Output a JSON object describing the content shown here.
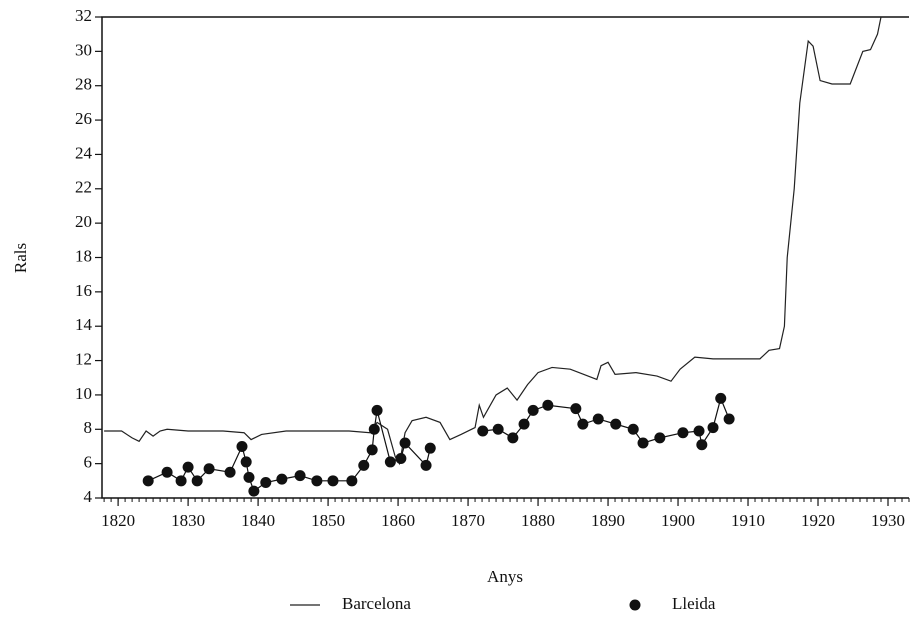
{
  "chart_data": {
    "type": "line",
    "x_label": "Anys",
    "y_label": "Rals",
    "xlim": [
      1817.7,
      1933
    ],
    "ylim": [
      4,
      32
    ],
    "xticks": [
      1820,
      1830,
      1840,
      1850,
      1860,
      1870,
      1880,
      1890,
      1900,
      1910,
      1920,
      1930
    ],
    "yticks": [
      4,
      6,
      8,
      10,
      12,
      14,
      16,
      18,
      20,
      22,
      24,
      26,
      28,
      30,
      32
    ],
    "grid": false,
    "series": [
      {
        "name": "Barcelona",
        "color": "#222222",
        "marker": "none",
        "x": [
          1818,
          1820.5,
          1822,
          1823,
          1824,
          1825,
          1826,
          1827,
          1830,
          1835,
          1838,
          1839,
          1840.5,
          1844,
          1848,
          1853,
          1856,
          1857,
          1858.5,
          1859.6,
          1860.2,
          1861,
          1862,
          1864,
          1866,
          1867.4,
          1869,
          1871,
          1871.6,
          1872.2,
          1874,
          1875.6,
          1877,
          1878.5,
          1880,
          1882,
          1884.6,
          1886.5,
          1888.4,
          1889,
          1890,
          1891,
          1894,
          1897,
          1899,
          1900.3,
          1902.4,
          1905,
          1911.7,
          1913,
          1914.5,
          1915.2,
          1915.6,
          1916.6,
          1917.4,
          1918.6,
          1919.3,
          1920.3,
          1922,
          1924.6,
          1926.4,
          1927.5,
          1928.5,
          1929
        ],
        "values": [
          7.9,
          7.9,
          7.5,
          7.3,
          7.9,
          7.6,
          7.9,
          8.0,
          7.9,
          7.9,
          7.8,
          7.4,
          7.7,
          7.9,
          7.9,
          7.9,
          7.8,
          8.4,
          8.0,
          6.4,
          6.0,
          7.8,
          8.5,
          8.7,
          8.4,
          7.4,
          7.7,
          8.1,
          9.4,
          8.7,
          10.0,
          10.4,
          9.7,
          10.6,
          11.3,
          11.6,
          11.5,
          11.2,
          10.9,
          11.7,
          11.9,
          11.2,
          11.3,
          11.1,
          10.8,
          11.5,
          12.2,
          12.1,
          12.1,
          12.6,
          12.7,
          14,
          18,
          22,
          27,
          30.6,
          30.3,
          28.3,
          28.1,
          28.1,
          30.0,
          30.1,
          31,
          32
        ]
      },
      {
        "name": "Lleida",
        "color": "#111111",
        "marker": "circle",
        "x": [
          1824.3,
          1827,
          1829,
          1830,
          1831.3,
          1833,
          1836,
          1837.7,
          1838.3,
          1838.7,
          1839.4,
          1841.1,
          1843.4,
          1846,
          1848.4,
          1850.7,
          1853.4,
          1855.1,
          1856.3,
          1856.6,
          1857,
          1858.9,
          1860.4,
          1861,
          1864,
          1864.6,
          null,
          1872.1,
          1874.3,
          1876.4,
          1878,
          1879.3,
          1881.4,
          1885.4,
          1886.4,
          1888.6,
          1891.1,
          1893.6,
          1895,
          1897.4,
          1900.7,
          1903,
          1903.4,
          1905,
          1906.1,
          1907.3
        ],
        "values": [
          5.0,
          5.5,
          5.0,
          5.8,
          5.0,
          5.7,
          5.5,
          7.0,
          6.1,
          5.2,
          4.4,
          4.9,
          5.1,
          5.3,
          5.0,
          5.0,
          5.0,
          5.9,
          6.8,
          8.0,
          9.1,
          6.1,
          6.3,
          7.2,
          5.9,
          6.9,
          null,
          7.9,
          8.0,
          7.5,
          8.3,
          9.1,
          9.4,
          9.2,
          8.3,
          8.6,
          8.3,
          8.0,
          7.2,
          7.5,
          7.8,
          7.9,
          7.1,
          8.1,
          9.8,
          8.6
        ]
      }
    ]
  }
}
